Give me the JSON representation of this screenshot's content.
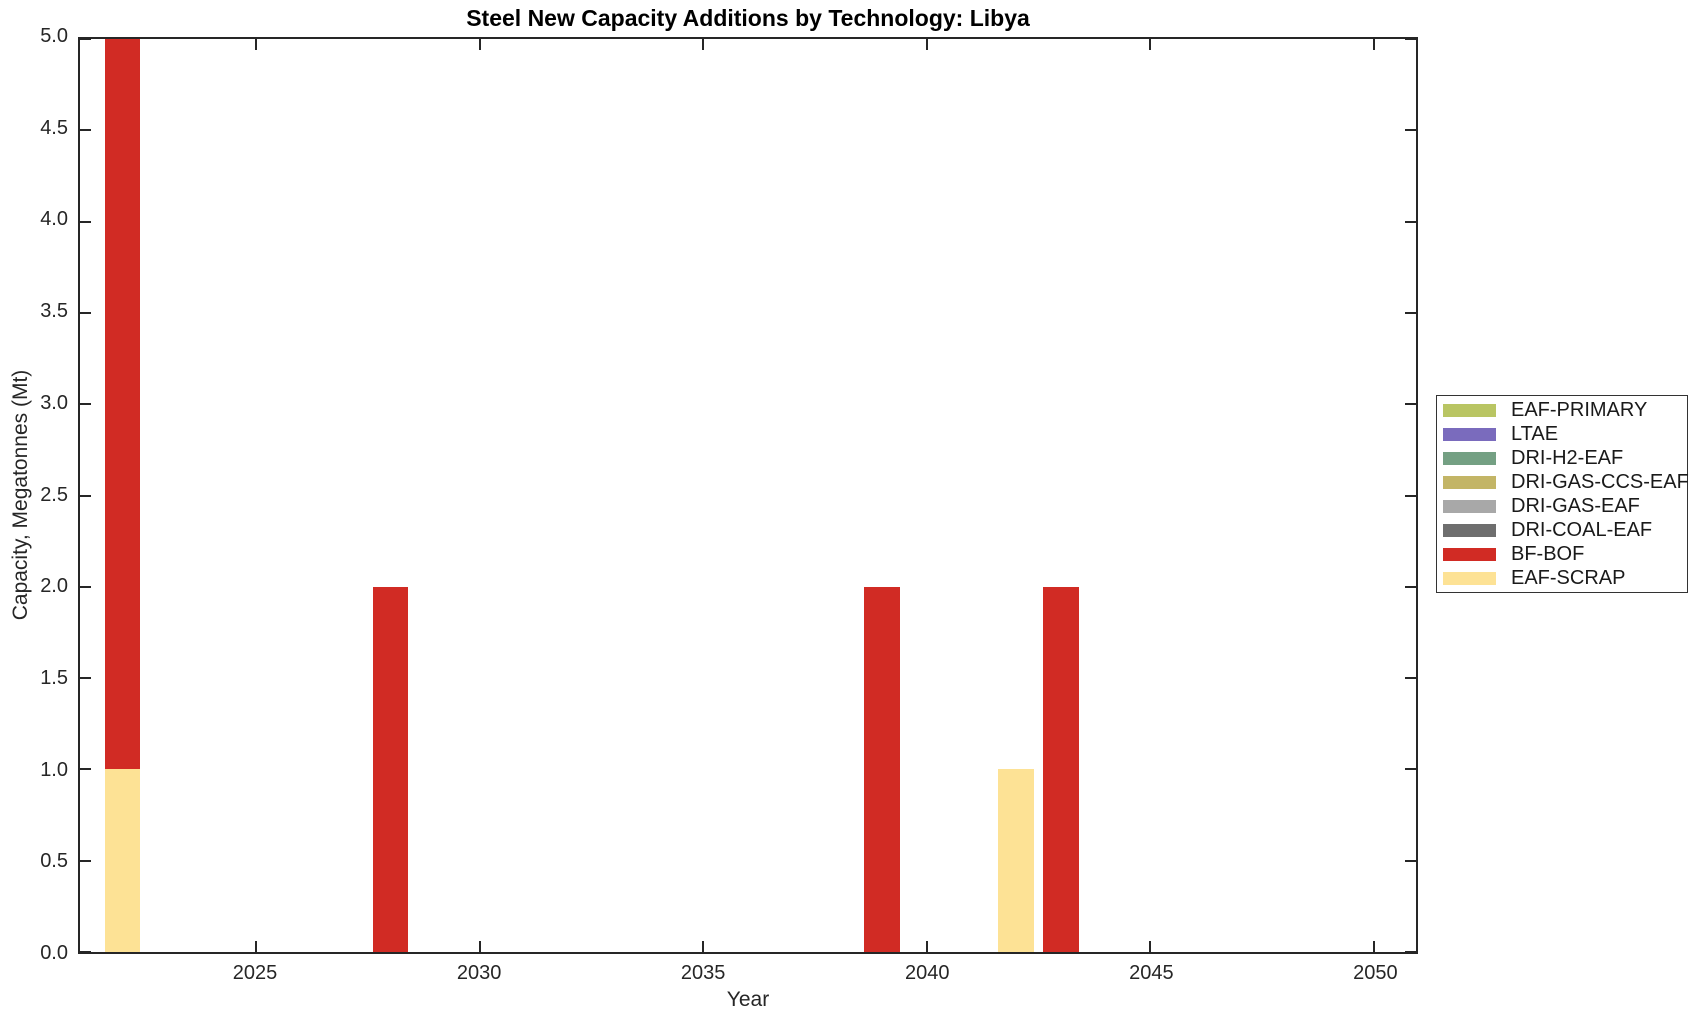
{
  "chart_data": {
    "type": "bar",
    "stacked": true,
    "title": "Steel New Capacity Additions by Technology: Libya",
    "xlabel": "Year",
    "ylabel": "Capacity, Megatonnes (Mt)",
    "xlim": [
      2021.05,
      2050.95
    ],
    "ylim": [
      0,
      5
    ],
    "bar_width_years": 0.8,
    "grid": false,
    "legend_position": "right-outside",
    "xticks": [
      {
        "value": 2025,
        "label": "2025"
      },
      {
        "value": 2030,
        "label": "2030"
      },
      {
        "value": 2035,
        "label": "2035"
      },
      {
        "value": 2040,
        "label": "2040"
      },
      {
        "value": 2045,
        "label": "2045"
      },
      {
        "value": 2050,
        "label": "2050"
      }
    ],
    "yticks": [
      {
        "value": 0,
        "label": "0.0"
      },
      {
        "value": 0.5,
        "label": "0.5"
      },
      {
        "value": 1,
        "label": "1.0"
      },
      {
        "value": 1.5,
        "label": "1.5"
      },
      {
        "value": 2,
        "label": "2.0"
      },
      {
        "value": 2.5,
        "label": "2.5"
      },
      {
        "value": 3,
        "label": "3.0"
      },
      {
        "value": 3.5,
        "label": "3.5"
      },
      {
        "value": 4,
        "label": "4.0"
      },
      {
        "value": 4.5,
        "label": "4.5"
      },
      {
        "value": 5,
        "label": "5.0"
      }
    ],
    "legend": [
      {
        "label": "EAF-PRIMARY",
        "color": "#B9C563"
      },
      {
        "label": "LTAE",
        "color": "#7A6BBD"
      },
      {
        "label": "DRI-H2-EAF",
        "color": "#74A083"
      },
      {
        "label": "DRI-GAS-CCS-EAF",
        "color": "#C3B566"
      },
      {
        "label": "DRI-GAS-EAF",
        "color": "#A8A8A8"
      },
      {
        "label": "DRI-COAL-EAF",
        "color": "#6E6E6E"
      },
      {
        "label": "BF-BOF",
        "color": "#D12B24"
      },
      {
        "label": "EAF-SCRAP",
        "color": "#FDE295"
      }
    ],
    "bars": [
      {
        "year": 2022,
        "segments": [
          {
            "series": "EAF-SCRAP",
            "value": 1.0
          },
          {
            "series": "BF-BOF",
            "value": 4.0
          }
        ]
      },
      {
        "year": 2028,
        "segments": [
          {
            "series": "BF-BOF",
            "value": 2.0
          }
        ]
      },
      {
        "year": 2039,
        "segments": [
          {
            "series": "BF-BOF",
            "value": 2.0
          }
        ]
      },
      {
        "year": 2042,
        "segments": [
          {
            "series": "EAF-SCRAP",
            "value": 1.0
          }
        ]
      },
      {
        "year": 2043,
        "segments": [
          {
            "series": "BF-BOF",
            "value": 2.0
          }
        ]
      }
    ]
  },
  "colors": {
    "axis": "#262626",
    "background": "#FFFFFF",
    "title_text": "#000000",
    "legend_border": "#333333"
  }
}
